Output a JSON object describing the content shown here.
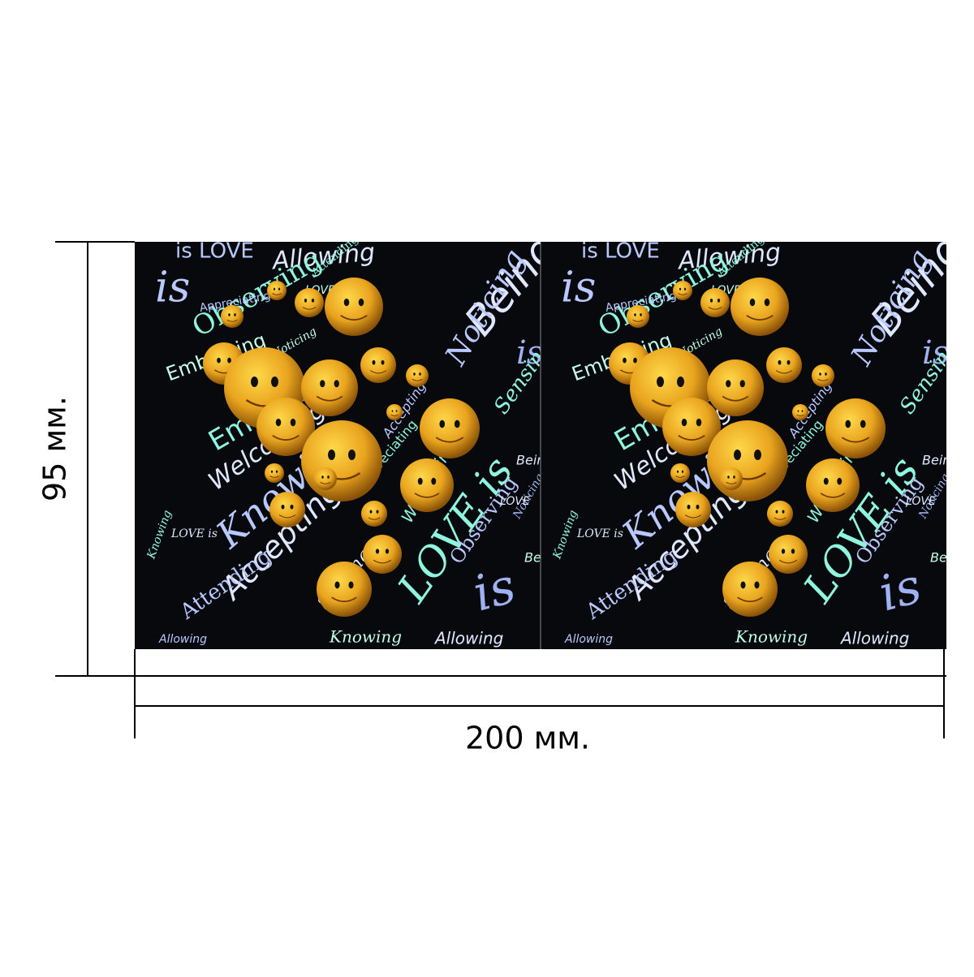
{
  "dimensions": {
    "height_label": "95 мм.",
    "width_label": "200 мм."
  },
  "artwork": {
    "words": [
      "is LOVE",
      "is",
      "Allowing",
      "Observing",
      "Being",
      "Noticing",
      "Embracing",
      "Knowing",
      "Accepting",
      "Attending",
      "Welcoming",
      "Sensing",
      "Appreciating",
      "LOVE is",
      "LOVE"
    ]
  }
}
